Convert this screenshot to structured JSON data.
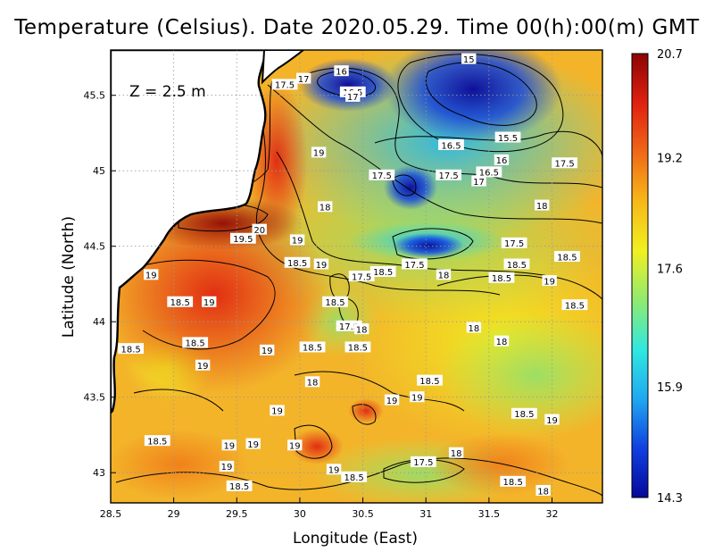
{
  "chart_data": {
    "type": "heatmap",
    "title": "Temperature (Celsius). Date 2020.05.29. Time 00(h):00(m)  GMT",
    "depth_label": "Z  =  2.5  m",
    "xlabel": "Longitude (East)",
    "ylabel": "Latitude (North)",
    "xlim": [
      28.5,
      32.4
    ],
    "ylim": [
      42.8,
      45.8
    ],
    "xticks": [
      28.5,
      29,
      29.5,
      30,
      30.5,
      31,
      31.5,
      32
    ],
    "xtick_labels": [
      "28.5",
      "29",
      "29.5",
      "30",
      "30.5",
      "31",
      "31.5",
      "32"
    ],
    "yticks": [
      43,
      43.5,
      44,
      44.5,
      45,
      45.5
    ],
    "ytick_labels": [
      "43",
      "43.5",
      "44",
      "44.5",
      "45",
      "45.5"
    ],
    "grid": true,
    "colorbar": {
      "min": 14.3,
      "max": 20.7,
      "ticks": [
        20.7,
        19.2,
        17.6,
        15.9,
        14.3
      ],
      "tick_labels": [
        "20.7",
        "19.2",
        "17.6",
        "15.9",
        "14.3"
      ],
      "colors": [
        "#07079a",
        "#1040e0",
        "#20a8f0",
        "#30e8e0",
        "#90ea70",
        "#f0f020",
        "#f8b818",
        "#f06818",
        "#e02010",
        "#8c0404"
      ]
    },
    "contour_labels": [
      {
        "text": "15",
        "x": 31.34,
        "y": 45.74
      },
      {
        "text": "16",
        "x": 30.33,
        "y": 45.66
      },
      {
        "text": "17",
        "x": 30.03,
        "y": 45.61
      },
      {
        "text": "17.5",
        "x": 29.88,
        "y": 45.57
      },
      {
        "text": "16.5",
        "x": 30.42,
        "y": 45.52
      },
      {
        "text": "17",
        "x": 30.42,
        "y": 45.49
      },
      {
        "text": "15.5",
        "x": 31.65,
        "y": 45.22
      },
      {
        "text": "16.5",
        "x": 31.2,
        "y": 45.17
      },
      {
        "text": "16",
        "x": 31.6,
        "y": 45.07
      },
      {
        "text": "19",
        "x": 30.15,
        "y": 45.12
      },
      {
        "text": "17.5",
        "x": 32.1,
        "y": 45.05
      },
      {
        "text": "16.5",
        "x": 31.5,
        "y": 44.99
      },
      {
        "text": "17.5",
        "x": 30.65,
        "y": 44.97
      },
      {
        "text": "17.5",
        "x": 31.18,
        "y": 44.97
      },
      {
        "text": "17",
        "x": 31.42,
        "y": 44.93
      },
      {
        "text": "18",
        "x": 30.2,
        "y": 44.76
      },
      {
        "text": "18",
        "x": 31.92,
        "y": 44.77
      },
      {
        "text": "20",
        "x": 29.68,
        "y": 44.61
      },
      {
        "text": "19.5",
        "x": 29.55,
        "y": 44.55
      },
      {
        "text": "19",
        "x": 29.98,
        "y": 44.54
      },
      {
        "text": "17.5",
        "x": 31.7,
        "y": 44.52
      },
      {
        "text": "18.5",
        "x": 32.12,
        "y": 44.43
      },
      {
        "text": "18.5",
        "x": 29.98,
        "y": 44.39
      },
      {
        "text": "19",
        "x": 30.17,
        "y": 44.38
      },
      {
        "text": "17.5",
        "x": 30.91,
        "y": 44.38
      },
      {
        "text": "18.5",
        "x": 31.72,
        "y": 44.38
      },
      {
        "text": "18.5",
        "x": 30.66,
        "y": 44.33
      },
      {
        "text": "17.5",
        "x": 30.49,
        "y": 44.3
      },
      {
        "text": "18",
        "x": 31.14,
        "y": 44.31
      },
      {
        "text": "18.5",
        "x": 31.6,
        "y": 44.29
      },
      {
        "text": "19",
        "x": 31.98,
        "y": 44.27
      },
      {
        "text": "19",
        "x": 28.82,
        "y": 44.31
      },
      {
        "text": "18.5",
        "x": 29.05,
        "y": 44.13
      },
      {
        "text": "19",
        "x": 29.28,
        "y": 44.13
      },
      {
        "text": "18.5",
        "x": 30.28,
        "y": 44.13
      },
      {
        "text": "18.5",
        "x": 32.18,
        "y": 44.11
      },
      {
        "text": "17.5",
        "x": 30.39,
        "y": 43.97
      },
      {
        "text": "18",
        "x": 30.49,
        "y": 43.95
      },
      {
        "text": "18",
        "x": 31.38,
        "y": 43.96
      },
      {
        "text": "18.5",
        "x": 29.17,
        "y": 43.86
      },
      {
        "text": "18",
        "x": 31.6,
        "y": 43.87
      },
      {
        "text": "18.5",
        "x": 28.66,
        "y": 43.82
      },
      {
        "text": "19",
        "x": 29.74,
        "y": 43.81
      },
      {
        "text": "18.5",
        "x": 30.1,
        "y": 43.83
      },
      {
        "text": "18.5",
        "x": 30.46,
        "y": 43.83
      },
      {
        "text": "19",
        "x": 29.23,
        "y": 43.71
      },
      {
        "text": "18",
        "x": 30.1,
        "y": 43.6
      },
      {
        "text": "18.5",
        "x": 31.03,
        "y": 43.61
      },
      {
        "text": "19",
        "x": 30.73,
        "y": 43.48
      },
      {
        "text": "19",
        "x": 30.93,
        "y": 43.5
      },
      {
        "text": "19",
        "x": 29.82,
        "y": 43.41
      },
      {
        "text": "18.5",
        "x": 31.78,
        "y": 43.39
      },
      {
        "text": "19",
        "x": 32.0,
        "y": 43.35
      },
      {
        "text": "18.5",
        "x": 28.87,
        "y": 43.21
      },
      {
        "text": "19",
        "x": 29.44,
        "y": 43.18
      },
      {
        "text": "19",
        "x": 29.63,
        "y": 43.19
      },
      {
        "text": "19",
        "x": 29.96,
        "y": 43.18
      },
      {
        "text": "18",
        "x": 31.24,
        "y": 43.13
      },
      {
        "text": "17.5",
        "x": 30.98,
        "y": 43.07
      },
      {
        "text": "19",
        "x": 29.42,
        "y": 43.04
      },
      {
        "text": "19",
        "x": 30.27,
        "y": 43.02
      },
      {
        "text": "18.5",
        "x": 30.43,
        "y": 42.97
      },
      {
        "text": "18.5",
        "x": 29.52,
        "y": 42.91
      },
      {
        "text": "18.5",
        "x": 31.69,
        "y": 42.94
      },
      {
        "text": "18",
        "x": 31.93,
        "y": 42.88
      }
    ]
  }
}
